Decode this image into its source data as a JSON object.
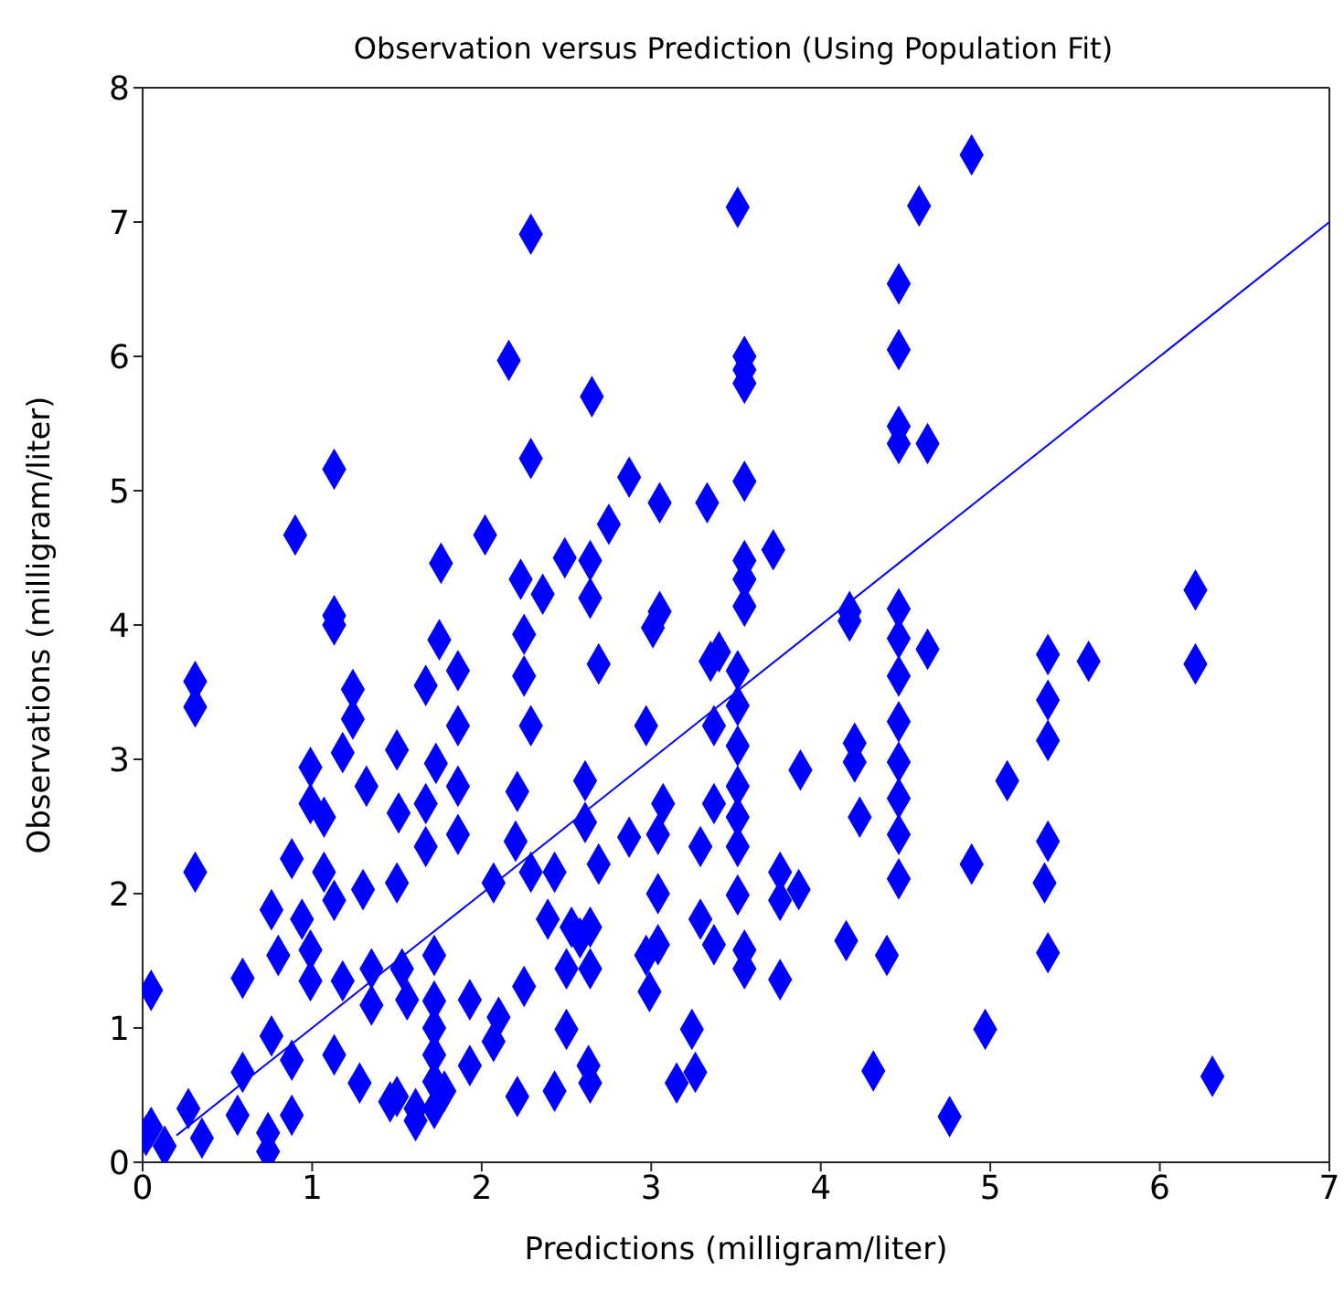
{
  "chart_data": {
    "type": "scatter",
    "title": "Observation versus Prediction (Using Population Fit)",
    "xlabel": "Predictions (milligram/liter)",
    "ylabel": "Observations (milligram/liter)",
    "xlim": [
      0,
      7
    ],
    "ylim": [
      0,
      8
    ],
    "xticks": [
      0,
      1,
      2,
      3,
      4,
      5,
      6,
      7
    ],
    "yticks": [
      0,
      1,
      2,
      3,
      4,
      5,
      6,
      7,
      8
    ],
    "marker": "diamond",
    "series": [
      {
        "color": "#0000ff",
        "x": [
          4.89,
          4.58,
          3.51,
          2.29,
          4.46,
          4.46,
          3.55,
          3.55,
          3.55,
          2.16,
          2.65,
          4.46,
          4.46,
          4.63,
          2.29,
          1.13,
          3.55,
          2.87,
          3.05,
          3.33,
          0.9,
          2.02,
          2.75,
          3.72,
          3.55,
          3.55,
          1.76,
          2.49,
          2.64,
          2.64,
          2.23,
          2.36,
          1.13,
          3.05,
          3.55,
          4.17,
          4.46,
          6.21,
          1.13,
          0.31,
          0.31,
          1.75,
          2.25,
          2.25,
          1.24,
          1.24,
          1.67,
          1.86,
          1.86,
          2.69,
          3.01,
          3.35,
          2.29,
          2.97,
          0.31,
          0.99,
          0.99,
          1.18,
          1.5,
          1.32,
          1.73,
          1.86,
          2.21,
          1.51,
          1.07,
          1.07,
          0.88,
          1.67,
          1.67,
          1.86,
          2.2,
          2.61,
          2.61,
          2.87,
          3.07,
          2.07,
          2.43,
          2.69,
          1.5,
          1.3,
          1.13,
          0.76,
          0.94,
          2.29,
          2.39,
          2.53,
          2.64,
          3.04,
          3.04,
          3.04,
          3.29,
          3.29,
          2.97,
          0.8,
          0.59,
          0.05,
          0.99,
          0.99,
          1.18,
          1.35,
          1.35,
          1.53,
          1.72,
          1.72,
          1.72,
          1.72,
          1.72,
          1.72,
          1.56,
          1.93,
          2.1,
          2.25,
          2.5,
          2.64,
          2.58,
          2.99,
          3.24,
          0.76,
          0.88,
          0.59,
          1.13,
          1.28,
          1.5,
          1.61,
          1.78,
          1.93,
          2.07,
          2.21,
          2.43,
          2.5,
          2.63,
          2.64,
          3.15,
          3.26,
          0.56,
          0.74,
          0.74,
          0.88,
          0.27,
          0.05,
          0.13,
          0.35,
          0.02,
          1.61,
          1.46,
          4.17,
          4.46,
          4.46,
          4.63,
          5.34,
          5.58,
          6.21,
          3.4,
          3.51,
          3.51,
          3.51,
          3.51,
          3.51,
          3.37,
          3.37,
          3.37,
          4.46,
          3.88,
          4.2,
          4.2,
          4.46,
          4.46,
          4.46,
          5.34,
          5.34,
          5.1,
          4.23,
          5.34,
          4.89,
          5.32,
          4.46,
          3.51,
          3.51,
          3.76,
          3.76,
          3.87,
          4.15,
          4.39,
          5.34,
          3.55,
          3.55,
          3.76,
          4.97,
          4.31,
          6.31,
          4.76
        ],
        "values": [
          7.5,
          7.12,
          7.11,
          6.91,
          6.54,
          6.05,
          6.0,
          5.9,
          5.8,
          5.97,
          5.7,
          5.48,
          5.35,
          5.35,
          5.24,
          5.16,
          5.07,
          5.1,
          4.91,
          4.91,
          4.67,
          4.67,
          4.75,
          4.56,
          4.48,
          4.34,
          4.46,
          4.5,
          4.48,
          4.2,
          4.34,
          4.23,
          4.07,
          4.1,
          4.14,
          4.1,
          4.12,
          4.26,
          4.0,
          3.58,
          3.39,
          3.89,
          3.93,
          3.62,
          3.52,
          3.3,
          3.55,
          3.66,
          3.25,
          3.71,
          3.98,
          3.73,
          3.25,
          3.25,
          2.16,
          2.94,
          2.67,
          3.05,
          3.07,
          2.8,
          2.97,
          2.8,
          2.76,
          2.6,
          2.57,
          2.16,
          2.26,
          2.67,
          2.35,
          2.44,
          2.39,
          2.84,
          2.53,
          2.42,
          2.67,
          2.08,
          2.16,
          2.22,
          2.08,
          2.03,
          1.95,
          1.88,
          1.81,
          2.16,
          1.81,
          1.75,
          1.75,
          2.44,
          2.0,
          1.62,
          2.35,
          1.81,
          1.54,
          1.54,
          1.37,
          1.28,
          1.58,
          1.35,
          1.35,
          1.44,
          1.17,
          1.44,
          1.54,
          1.2,
          0.8,
          0.4,
          1.0,
          0.6,
          1.21,
          1.21,
          1.08,
          1.31,
          1.44,
          1.44,
          1.67,
          1.27,
          0.99,
          0.94,
          0.76,
          0.67,
          0.8,
          0.59,
          0.49,
          0.4,
          0.53,
          0.72,
          0.9,
          0.49,
          0.53,
          0.99,
          0.72,
          0.59,
          0.59,
          0.67,
          0.35,
          0.22,
          0.08,
          0.35,
          0.4,
          0.26,
          0.12,
          0.18,
          0.2,
          0.31,
          0.45,
          4.03,
          3.9,
          3.62,
          3.82,
          3.78,
          3.73,
          3.71,
          3.8,
          3.66,
          3.4,
          3.1,
          2.8,
          2.57,
          3.25,
          2.67,
          1.62,
          3.28,
          2.92,
          3.12,
          2.98,
          2.98,
          2.71,
          2.44,
          3.44,
          3.14,
          2.84,
          2.57,
          2.39,
          2.22,
          2.08,
          2.11,
          2.35,
          1.99,
          2.16,
          1.95,
          2.03,
          1.65,
          1.54,
          1.56,
          1.58,
          1.44,
          1.36,
          0.99,
          0.68,
          0.64,
          0.34
        ]
      },
      {
        "type": "line",
        "marker": "none",
        "color": "#0000ff",
        "x": [
          0.2,
          7
        ],
        "values": [
          0.2,
          7
        ]
      }
    ]
  }
}
